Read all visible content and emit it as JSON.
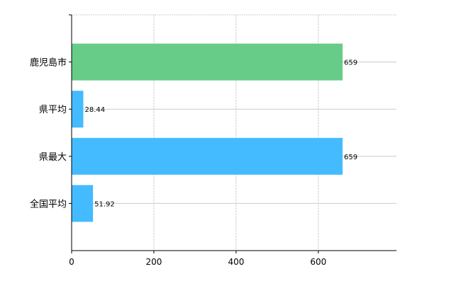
{
  "chart_data": {
    "type": "bar",
    "orientation": "horizontal",
    "categories": [
      "鹿児島市",
      "県平均",
      "県最大",
      "全国平均"
    ],
    "values": [
      659,
      28.44,
      659,
      51.92
    ],
    "value_labels": [
      "659",
      "28.44",
      "659",
      "51.92"
    ],
    "bar_colors": [
      "#66cc88",
      "#44bbff",
      "#44bbff",
      "#44bbff"
    ],
    "xlim": [
      0,
      790
    ],
    "xticks": [
      0,
      200,
      400,
      600
    ],
    "xtick_labels": [
      "0",
      "200",
      "400",
      "600"
    ],
    "grid": true,
    "title": "",
    "xlabel": "",
    "ylabel": ""
  }
}
